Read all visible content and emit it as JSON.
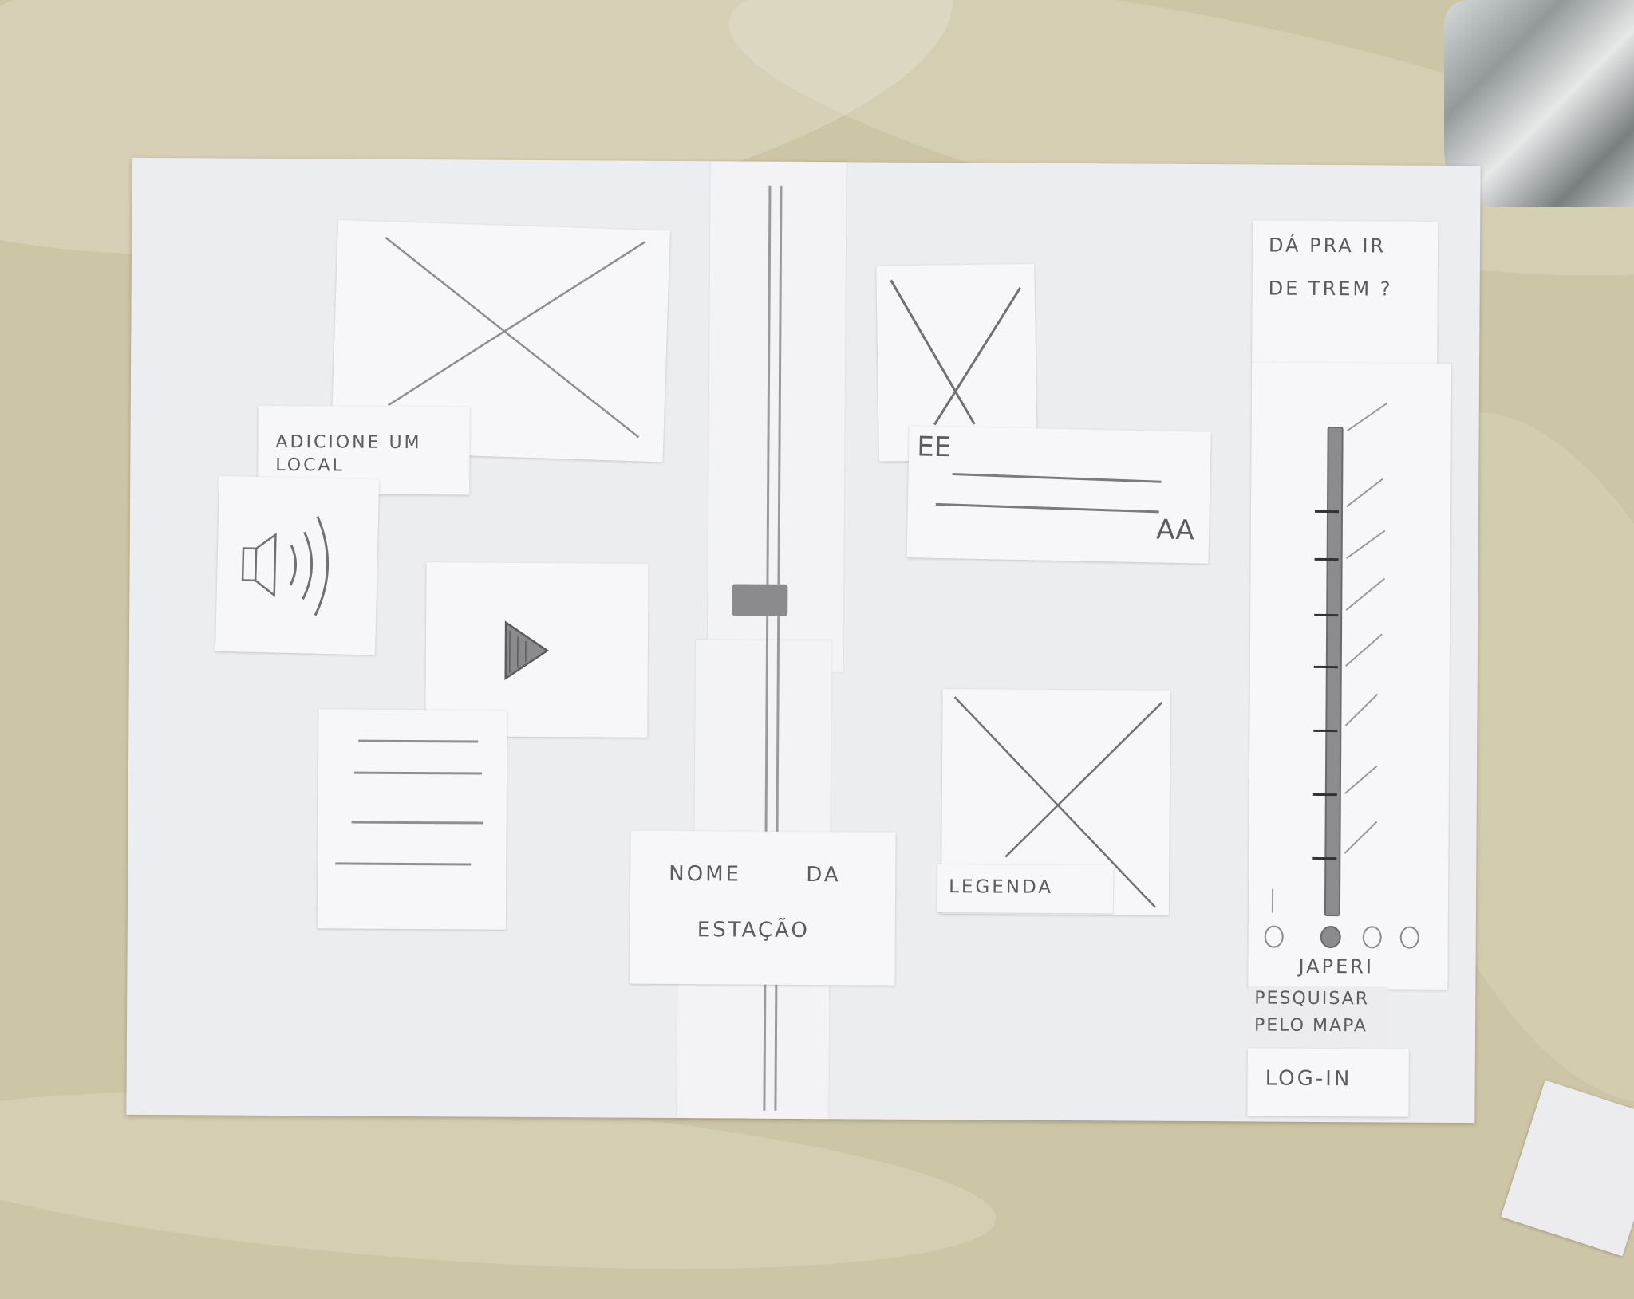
{
  "panels": {
    "add_location": {
      "label": "ADICIONE UM LOCAL"
    },
    "station_name": {
      "line1": "NOME DA",
      "line2": "ESTAÇÃO"
    },
    "caption": {
      "label": "LEGENDA"
    },
    "train_question": {
      "line1": "DÁ PRA IR",
      "line2": "DE TREM ?"
    },
    "station_list": {
      "selected_station": "JAPERI"
    },
    "map_search": {
      "line1": "PESQUISAR",
      "line2": "PELO MAPA"
    },
    "login": {
      "label": "LOG-IN"
    }
  },
  "icons": {
    "speaker": "speaker-icon",
    "play": "play-icon",
    "image_placeholder": "image-placeholder-icon",
    "quote_open": "quote-open-icon",
    "quote_close": "quote-close-icon"
  },
  "colors": {
    "paper": "#ecedf0",
    "card": "#f7f7f9",
    "pencil": "#5b5b60",
    "table": "#cdc6a6"
  }
}
